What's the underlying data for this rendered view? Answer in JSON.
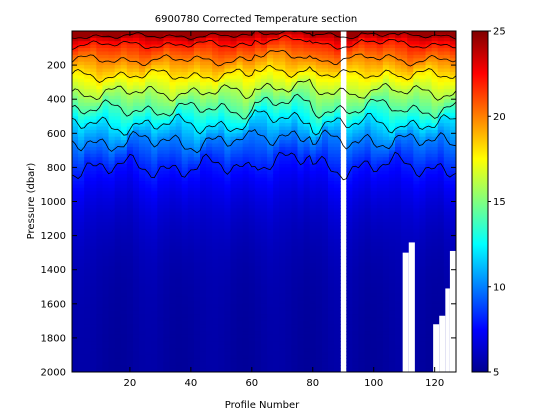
{
  "chart_data": {
    "type": "heatmap",
    "title": "6900780  Corrected Temperature section",
    "xlabel": "Profile Number",
    "ylabel": "Pressure (dbar)",
    "xlim": [
      1,
      127
    ],
    "ylim": [
      2000,
      0
    ],
    "x_ticks": [
      "20",
      "40",
      "60",
      "80",
      "100",
      "120"
    ],
    "y_ticks": [
      "200",
      "400",
      "600",
      "800",
      "1000",
      "1200",
      "1400",
      "1600",
      "1800",
      "2000"
    ],
    "colorbar": {
      "min": 5,
      "max": 25,
      "ticks": [
        "5",
        "10",
        "15",
        "20",
        "25"
      ],
      "colormap": "jet"
    },
    "contour_levels": [
      24,
      22,
      20,
      18,
      16,
      14,
      12,
      10,
      8
    ],
    "contour_base_depths_dbar": [
      30,
      80,
      170,
      260,
      360,
      460,
      550,
      650,
      800
    ],
    "surface_temperature": 24,
    "missing_profile_range": [
      90,
      91
    ],
    "data_gaps": [
      {
        "x_from": 109.5,
        "x_to": 111.5,
        "depth_from": 1300,
        "depth_to": 2000
      },
      {
        "x_from": 111.5,
        "x_to": 113.5,
        "depth_from": 1240,
        "depth_to": 2000
      },
      {
        "x_from": 119.5,
        "x_to": 121.5,
        "depth_from": 1720,
        "depth_to": 2000
      },
      {
        "x_from": 121.5,
        "x_to": 123.5,
        "depth_from": 1670,
        "depth_to": 2000
      },
      {
        "x_from": 123.5,
        "x_to": 125.0,
        "depth_from": 1510,
        "depth_to": 2000
      },
      {
        "x_from": 125.0,
        "x_to": 127.0,
        "depth_from": 1290,
        "depth_to": 2000
      }
    ]
  }
}
